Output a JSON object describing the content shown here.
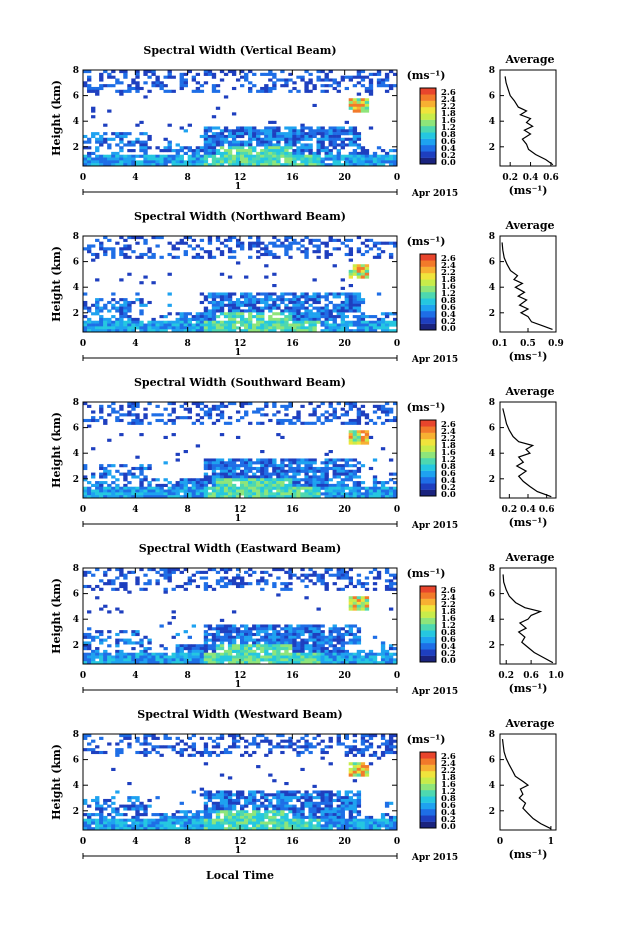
{
  "xlabel": "Local Time",
  "date_label": "Apr 2015",
  "day_label": "1",
  "colorbar": {
    "unit": "(ms⁻¹)",
    "ticks_a": [
      "2.6",
      "2.4",
      "2.2",
      "1.8",
      "1.6",
      "1.2",
      "0.8",
      "0.6",
      "0.4",
      "0.2",
      "0.0"
    ],
    "colors": [
      "#1a237e",
      "#1e3fbf",
      "#1e6ee6",
      "#1ea2f0",
      "#25c7e0",
      "#4dd8b0",
      "#8ee57a",
      "#c8ec4a",
      "#f0e43c",
      "#f7b032",
      "#f27a2a",
      "#e8452c"
    ]
  },
  "chart_data": [
    {
      "type": "heatmap",
      "title": "Spectral Width (Vertical Beam)",
      "ylabel": "Height (km)",
      "x_ticks": [
        "0",
        "4",
        "8",
        "12",
        "16",
        "20",
        "0"
      ],
      "y_ticks": [
        "2",
        "4",
        "6",
        "8"
      ],
      "xlim": [
        0,
        24
      ],
      "ylim": [
        0.5,
        8
      ],
      "avg_profile": {
        "title": "Average",
        "xlabel": "(ms⁻¹)",
        "x_ticks": [
          "0.2",
          "0.4",
          "0.6"
        ],
        "y_ticks": [
          "2",
          "4",
          "6",
          "8"
        ],
        "xlim": [
          0.1,
          0.65
        ],
        "points": [
          [
            0.62,
            0.6
          ],
          [
            0.55,
            1.0
          ],
          [
            0.45,
            1.4
          ],
          [
            0.38,
            1.8
          ],
          [
            0.36,
            2.2
          ],
          [
            0.32,
            2.6
          ],
          [
            0.4,
            3.0
          ],
          [
            0.34,
            3.3
          ],
          [
            0.42,
            3.6
          ],
          [
            0.36,
            3.9
          ],
          [
            0.4,
            4.2
          ],
          [
            0.3,
            4.5
          ],
          [
            0.36,
            4.8
          ],
          [
            0.28,
            5.1
          ],
          [
            0.24,
            5.6
          ],
          [
            0.2,
            6.0
          ],
          [
            0.18,
            6.5
          ],
          [
            0.16,
            7.0
          ],
          [
            0.15,
            7.5
          ]
        ]
      }
    },
    {
      "type": "heatmap",
      "title": "Spectral Width (Northward Beam)",
      "ylabel": "Height (km)",
      "x_ticks": [
        "0",
        "4",
        "8",
        "12",
        "16",
        "20",
        "0"
      ],
      "y_ticks": [
        "2",
        "4",
        "6",
        "8"
      ],
      "xlim": [
        0,
        24
      ],
      "ylim": [
        0.5,
        8
      ],
      "avg_profile": {
        "title": "Average",
        "xlabel": "(ms⁻¹)",
        "x_ticks": [
          "0.1",
          "0.5",
          "0.9"
        ],
        "y_ticks": [
          "2",
          "4",
          "6",
          "8"
        ],
        "xlim": [
          0.1,
          0.9
        ],
        "points": [
          [
            0.85,
            0.7
          ],
          [
            0.7,
            1.0
          ],
          [
            0.55,
            1.3
          ],
          [
            0.5,
            1.7
          ],
          [
            0.4,
            2.0
          ],
          [
            0.5,
            2.3
          ],
          [
            0.38,
            2.6
          ],
          [
            0.48,
            3.0
          ],
          [
            0.36,
            3.3
          ],
          [
            0.45,
            3.6
          ],
          [
            0.32,
            4.0
          ],
          [
            0.42,
            4.3
          ],
          [
            0.3,
            4.6
          ],
          [
            0.35,
            4.9
          ],
          [
            0.25,
            5.3
          ],
          [
            0.2,
            5.8
          ],
          [
            0.16,
            6.3
          ],
          [
            0.14,
            6.9
          ],
          [
            0.13,
            7.5
          ]
        ]
      }
    },
    {
      "type": "heatmap",
      "title": "Spectral Width (Southward Beam)",
      "ylabel": "Height (km)",
      "x_ticks": [
        "0",
        "4",
        "8",
        "12",
        "16",
        "20",
        "0"
      ],
      "y_ticks": [
        "2",
        "4",
        "6",
        "8"
      ],
      "xlim": [
        0,
        24
      ],
      "ylim": [
        0.5,
        8
      ],
      "avg_profile": {
        "title": "Average",
        "xlabel": "(ms⁻¹)",
        "x_ticks": [
          "0.2",
          "0.4",
          "0.6"
        ],
        "y_ticks": [
          "2",
          "4",
          "6",
          "8"
        ],
        "xlim": [
          0.1,
          0.7
        ],
        "points": [
          [
            0.65,
            0.6
          ],
          [
            0.5,
            1.0
          ],
          [
            0.42,
            1.4
          ],
          [
            0.35,
            1.8
          ],
          [
            0.3,
            2.2
          ],
          [
            0.38,
            2.6
          ],
          [
            0.28,
            3.0
          ],
          [
            0.35,
            3.3
          ],
          [
            0.3,
            3.7
          ],
          [
            0.42,
            4.0
          ],
          [
            0.38,
            4.3
          ],
          [
            0.45,
            4.6
          ],
          [
            0.3,
            4.9
          ],
          [
            0.24,
            5.3
          ],
          [
            0.2,
            5.8
          ],
          [
            0.17,
            6.3
          ],
          [
            0.15,
            6.9
          ],
          [
            0.13,
            7.5
          ]
        ]
      }
    },
    {
      "type": "heatmap",
      "title": "Spectral Width (Eastward Beam)",
      "ylabel": "Height (km)",
      "x_ticks": [
        "0",
        "4",
        "8",
        "12",
        "16",
        "20",
        "0"
      ],
      "y_ticks": [
        "2",
        "4",
        "6",
        "8"
      ],
      "xlim": [
        0,
        24
      ],
      "ylim": [
        0.5,
        8
      ],
      "avg_profile": {
        "title": "Average",
        "xlabel": "(ms⁻¹)",
        "x_ticks": [
          "0.2",
          "0.6",
          "1.0"
        ],
        "y_ticks": [
          "2",
          "4",
          "6",
          "8"
        ],
        "xlim": [
          0.1,
          1.0
        ],
        "points": [
          [
            0.95,
            0.6
          ],
          [
            0.8,
            1.0
          ],
          [
            0.65,
            1.4
          ],
          [
            0.55,
            1.8
          ],
          [
            0.45,
            2.2
          ],
          [
            0.5,
            2.6
          ],
          [
            0.4,
            3.0
          ],
          [
            0.52,
            3.3
          ],
          [
            0.42,
            3.7
          ],
          [
            0.55,
            4.0
          ],
          [
            0.6,
            4.3
          ],
          [
            0.75,
            4.6
          ],
          [
            0.5,
            4.9
          ],
          [
            0.35,
            5.3
          ],
          [
            0.25,
            5.8
          ],
          [
            0.2,
            6.3
          ],
          [
            0.16,
            6.9
          ],
          [
            0.15,
            7.5
          ]
        ]
      }
    },
    {
      "type": "heatmap",
      "title": "Spectral Width (Westward Beam)",
      "ylabel": "Height (km)",
      "x_ticks": [
        "0",
        "4",
        "8",
        "12",
        "16",
        "20",
        "0"
      ],
      "y_ticks": [
        "2",
        "4",
        "6",
        "8"
      ],
      "xlim": [
        0,
        24
      ],
      "ylim": [
        0.5,
        8
      ],
      "avg_profile": {
        "title": "Average",
        "xlabel": "(ms⁻¹)",
        "x_ticks": [
          "0",
          "1"
        ],
        "y_ticks": [
          "2",
          "4",
          "6",
          "8"
        ],
        "xlim": [
          0,
          1.1
        ],
        "points": [
          [
            1.0,
            0.6
          ],
          [
            0.8,
            1.0
          ],
          [
            0.65,
            1.4
          ],
          [
            0.55,
            1.8
          ],
          [
            0.45,
            2.2
          ],
          [
            0.5,
            2.6
          ],
          [
            0.38,
            3.0
          ],
          [
            0.45,
            3.3
          ],
          [
            0.4,
            3.7
          ],
          [
            0.55,
            4.0
          ],
          [
            0.45,
            4.3
          ],
          [
            0.3,
            4.7
          ],
          [
            0.25,
            5.1
          ],
          [
            0.18,
            5.6
          ],
          [
            0.12,
            6.1
          ],
          [
            0.08,
            6.6
          ],
          [
            0.06,
            7.2
          ],
          [
            0.05,
            7.6
          ]
        ]
      }
    }
  ]
}
